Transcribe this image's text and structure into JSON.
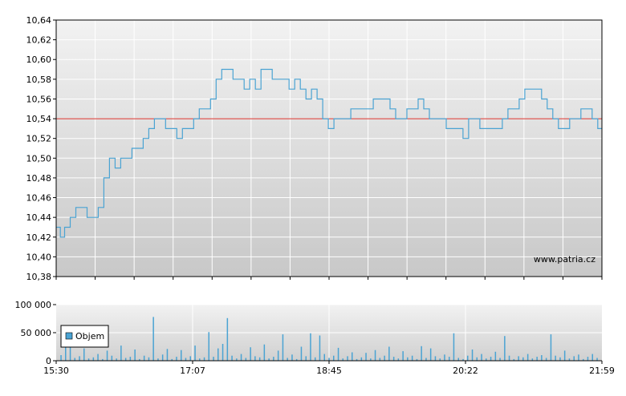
{
  "watermark": "www.patria.cz",
  "chart_data": [
    {
      "type": "line",
      "name_hint": "",
      "y_ticks": [
        "10,64",
        "10,62",
        "10,60",
        "10,58",
        "10,56",
        "10,54",
        "10,52",
        "10,50",
        "10,48",
        "10,46",
        "10,44",
        "10,42",
        "10,40",
        "10,38"
      ],
      "ylim": [
        10.38,
        10.64
      ],
      "xlim": [
        "15:30",
        "21:59"
      ],
      "reference_line": 10.54,
      "grid": true,
      "colors": {
        "line": "#4aa3d3",
        "reference": "#d9302a",
        "grid": "#ffffff",
        "bg_top": "#f0f0f0",
        "bg_bottom": "#c8c8c8"
      },
      "series": [
        {
          "time": [
            "15:30",
            "15:33",
            "15:36",
            "15:40",
            "15:44",
            "15:48",
            "15:52",
            "15:56",
            "16:00",
            "16:04",
            "16:08",
            "16:12",
            "16:16",
            "16:20",
            "16:24",
            "16:28",
            "16:32",
            "16:36",
            "16:40",
            "16:44",
            "16:48",
            "16:52",
            "16:56",
            "17:00",
            "17:04",
            "17:08",
            "17:12",
            "17:16",
            "17:20",
            "17:24",
            "17:28",
            "17:32",
            "17:36",
            "17:40",
            "17:44",
            "17:48",
            "17:52",
            "17:56",
            "18:00",
            "18:04",
            "18:08",
            "18:12",
            "18:16",
            "18:20",
            "18:24",
            "18:28",
            "18:32",
            "18:36",
            "18:40",
            "18:44",
            "18:48",
            "18:52",
            "18:56",
            "19:00",
            "19:04",
            "19:08",
            "19:12",
            "19:16",
            "19:20",
            "19:24",
            "19:28",
            "19:32",
            "19:36",
            "19:40",
            "19:44",
            "19:48",
            "19:52",
            "19:56",
            "20:00",
            "20:04",
            "20:08",
            "20:12",
            "20:16",
            "20:20",
            "20:24",
            "20:28",
            "20:32",
            "20:36",
            "20:40",
            "20:44",
            "20:48",
            "20:52",
            "20:56",
            "21:00",
            "21:04",
            "21:08",
            "21:12",
            "21:16",
            "21:20",
            "21:24",
            "21:28",
            "21:32",
            "21:36",
            "21:40",
            "21:44",
            "21:48",
            "21:52",
            "21:56",
            "21:59"
          ],
          "values": [
            10.43,
            10.42,
            10.43,
            10.44,
            10.45,
            10.45,
            10.44,
            10.44,
            10.45,
            10.48,
            10.5,
            10.49,
            10.5,
            10.5,
            10.51,
            10.51,
            10.52,
            10.53,
            10.54,
            10.54,
            10.53,
            10.53,
            10.52,
            10.53,
            10.53,
            10.54,
            10.55,
            10.55,
            10.56,
            10.58,
            10.59,
            10.59,
            10.58,
            10.58,
            10.57,
            10.58,
            10.57,
            10.59,
            10.59,
            10.58,
            10.58,
            10.58,
            10.57,
            10.58,
            10.57,
            10.56,
            10.57,
            10.56,
            10.54,
            10.53,
            10.54,
            10.54,
            10.54,
            10.55,
            10.55,
            10.55,
            10.55,
            10.56,
            10.56,
            10.56,
            10.55,
            10.54,
            10.54,
            10.55,
            10.55,
            10.56,
            10.55,
            10.54,
            10.54,
            10.54,
            10.53,
            10.53,
            10.53,
            10.52,
            10.54,
            10.54,
            10.53,
            10.53,
            10.53,
            10.53,
            10.54,
            10.55,
            10.55,
            10.56,
            10.57,
            10.57,
            10.57,
            10.56,
            10.55,
            10.54,
            10.53,
            10.53,
            10.54,
            10.54,
            10.55,
            10.55,
            10.54,
            10.53,
            10.53
          ]
        }
      ]
    },
    {
      "type": "bar",
      "y_ticks": [
        "100 000",
        "50 000",
        "0"
      ],
      "ylim": [
        0,
        100000
      ],
      "x_ticks": [
        "15:30",
        "17:07",
        "18:45",
        "20:22",
        "21:59"
      ],
      "legend": [
        "Objem"
      ],
      "legend_position": "left",
      "colors": {
        "bar": "#4aa3d3"
      },
      "values": [
        10000,
        31000,
        25000,
        5000,
        8000,
        22000,
        4000,
        6000,
        12000,
        3000,
        18000,
        9000,
        4000,
        27000,
        5000,
        7000,
        20000,
        3000,
        9000,
        6000,
        78000,
        4000,
        11000,
        21000,
        3000,
        7000,
        19000,
        5000,
        8000,
        27000,
        4000,
        6000,
        51000,
        7000,
        22000,
        30000,
        76000,
        9000,
        4000,
        12000,
        5000,
        24000,
        8000,
        6000,
        29000,
        4000,
        7000,
        18000,
        47000,
        5000,
        11000,
        3000,
        25000,
        8000,
        49000,
        6000,
        45000,
        12000,
        5000,
        9000,
        23000,
        4000,
        8000,
        15000,
        3000,
        6000,
        14000,
        4000,
        19000,
        5000,
        9000,
        25000,
        7000,
        4000,
        17000,
        6000,
        9000,
        3000,
        26000,
        5000,
        22000,
        8000,
        4000,
        11000,
        7000,
        49000,
        5000,
        3000,
        9000,
        20000,
        6000,
        12000,
        4000,
        7000,
        16000,
        5000,
        44000,
        9000,
        3000,
        8000,
        6000,
        12000,
        4000,
        7000,
        10000,
        5000,
        47000,
        9000,
        6000,
        18000,
        4000,
        8000,
        11000,
        3000,
        7000,
        12000,
        5000
      ]
    }
  ]
}
